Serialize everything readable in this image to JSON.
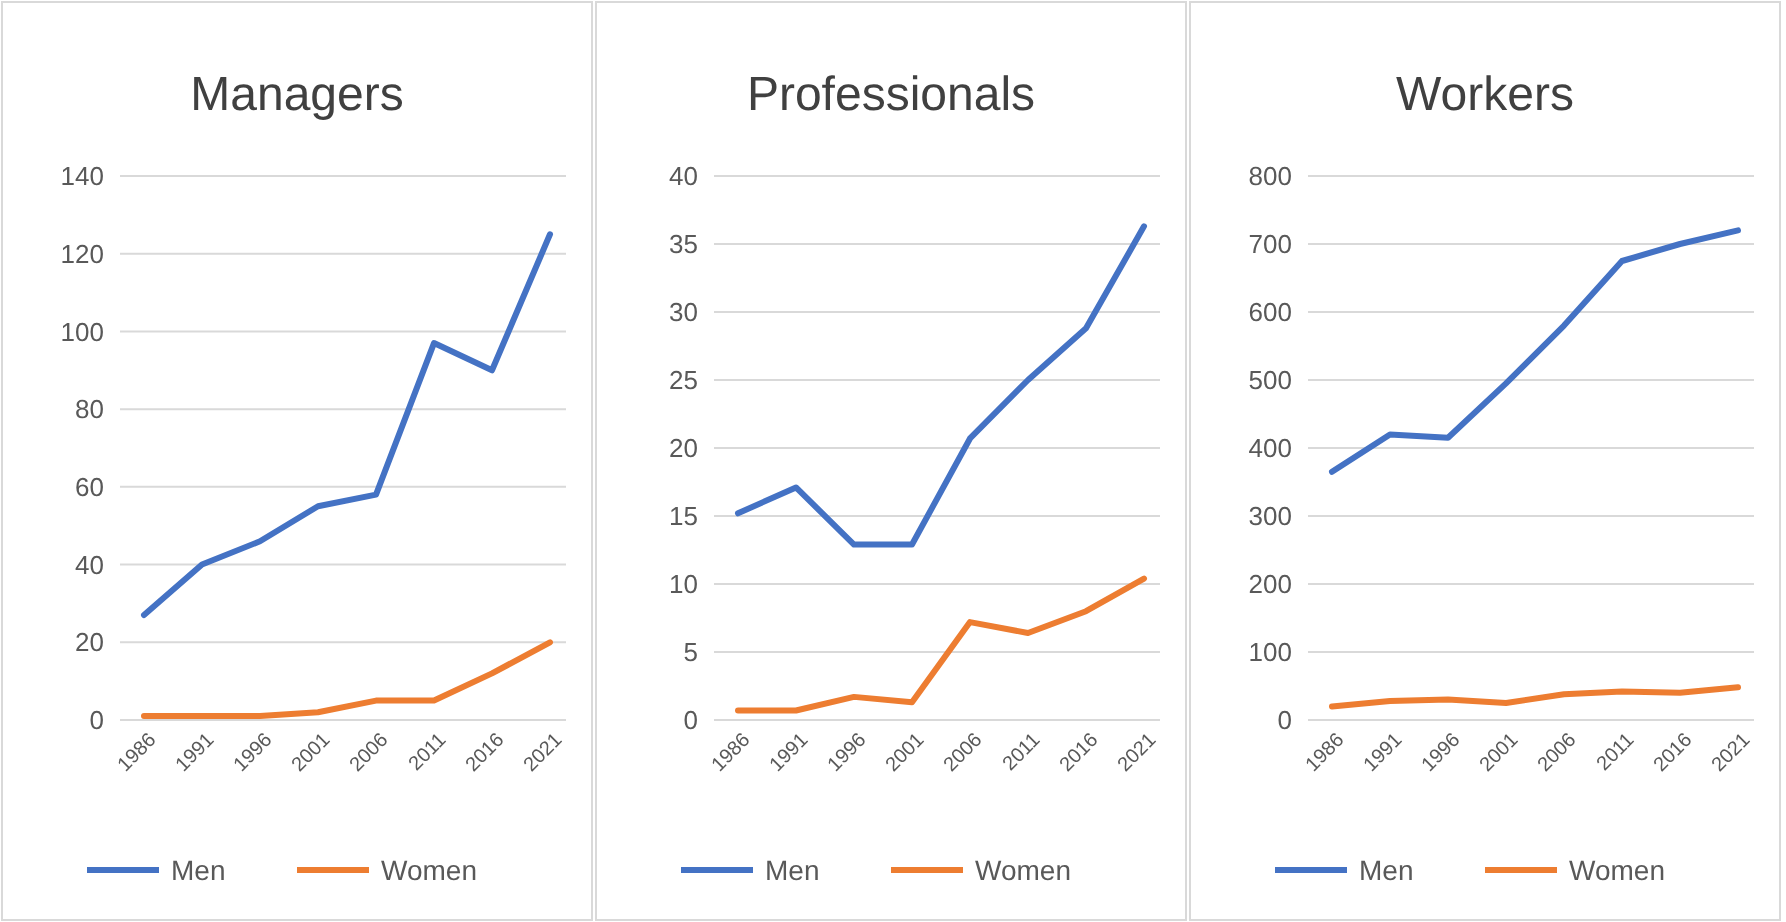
{
  "chart_data": [
    {
      "type": "line",
      "title": "Managers",
      "categories": [
        "1986",
        "1991",
        "1996",
        "2001",
        "2006",
        "2011",
        "2016",
        "2021"
      ],
      "series": [
        {
          "name": "Men",
          "color": "#4472c4",
          "values": [
            27,
            40,
            46,
            55,
            58,
            97,
            90,
            125
          ]
        },
        {
          "name": "Women",
          "color": "#ed7d31",
          "values": [
            1,
            1,
            1,
            2,
            5,
            5,
            12,
            20
          ]
        }
      ],
      "ylim": [
        0,
        140
      ],
      "yticks": [
        0,
        20,
        40,
        60,
        80,
        100,
        120,
        140
      ],
      "grid": "y",
      "legend": "bottom",
      "marker": "none",
      "line_style": "solid"
    },
    {
      "type": "line",
      "title": "Professionals",
      "categories": [
        "1986",
        "1991",
        "1996",
        "2001",
        "2006",
        "2011",
        "2016",
        "2021"
      ],
      "series": [
        {
          "name": "Men",
          "color": "#4472c4",
          "values": [
            15.2,
            17.1,
            12.9,
            12.9,
            20.7,
            25,
            28.8,
            36.3
          ]
        },
        {
          "name": "Women",
          "color": "#ed7d31",
          "values": [
            0.7,
            0.7,
            1.7,
            1.3,
            7.2,
            6.4,
            8,
            10.4
          ]
        }
      ],
      "ylim": [
        0,
        40
      ],
      "yticks": [
        0,
        5,
        10,
        15,
        20,
        25,
        30,
        35,
        40
      ],
      "grid": "y",
      "legend": "bottom",
      "marker": "none",
      "line_style": "solid"
    },
    {
      "type": "line",
      "title": "Workers",
      "categories": [
        "1986",
        "1991",
        "1996",
        "2001",
        "2006",
        "2011",
        "2016",
        "2021"
      ],
      "series": [
        {
          "name": "Men",
          "color": "#4472c4",
          "values": [
            365,
            420,
            415,
            495,
            580,
            675,
            700,
            720
          ]
        },
        {
          "name": "Women",
          "color": "#ed7d31",
          "values": [
            20,
            28,
            30,
            25,
            38,
            42,
            40,
            48
          ]
        }
      ],
      "ylim": [
        0,
        800
      ],
      "yticks": [
        0,
        100,
        200,
        300,
        400,
        500,
        600,
        700,
        800
      ],
      "grid": "y",
      "legend": "bottom",
      "marker": "none",
      "line_style": "solid"
    }
  ]
}
